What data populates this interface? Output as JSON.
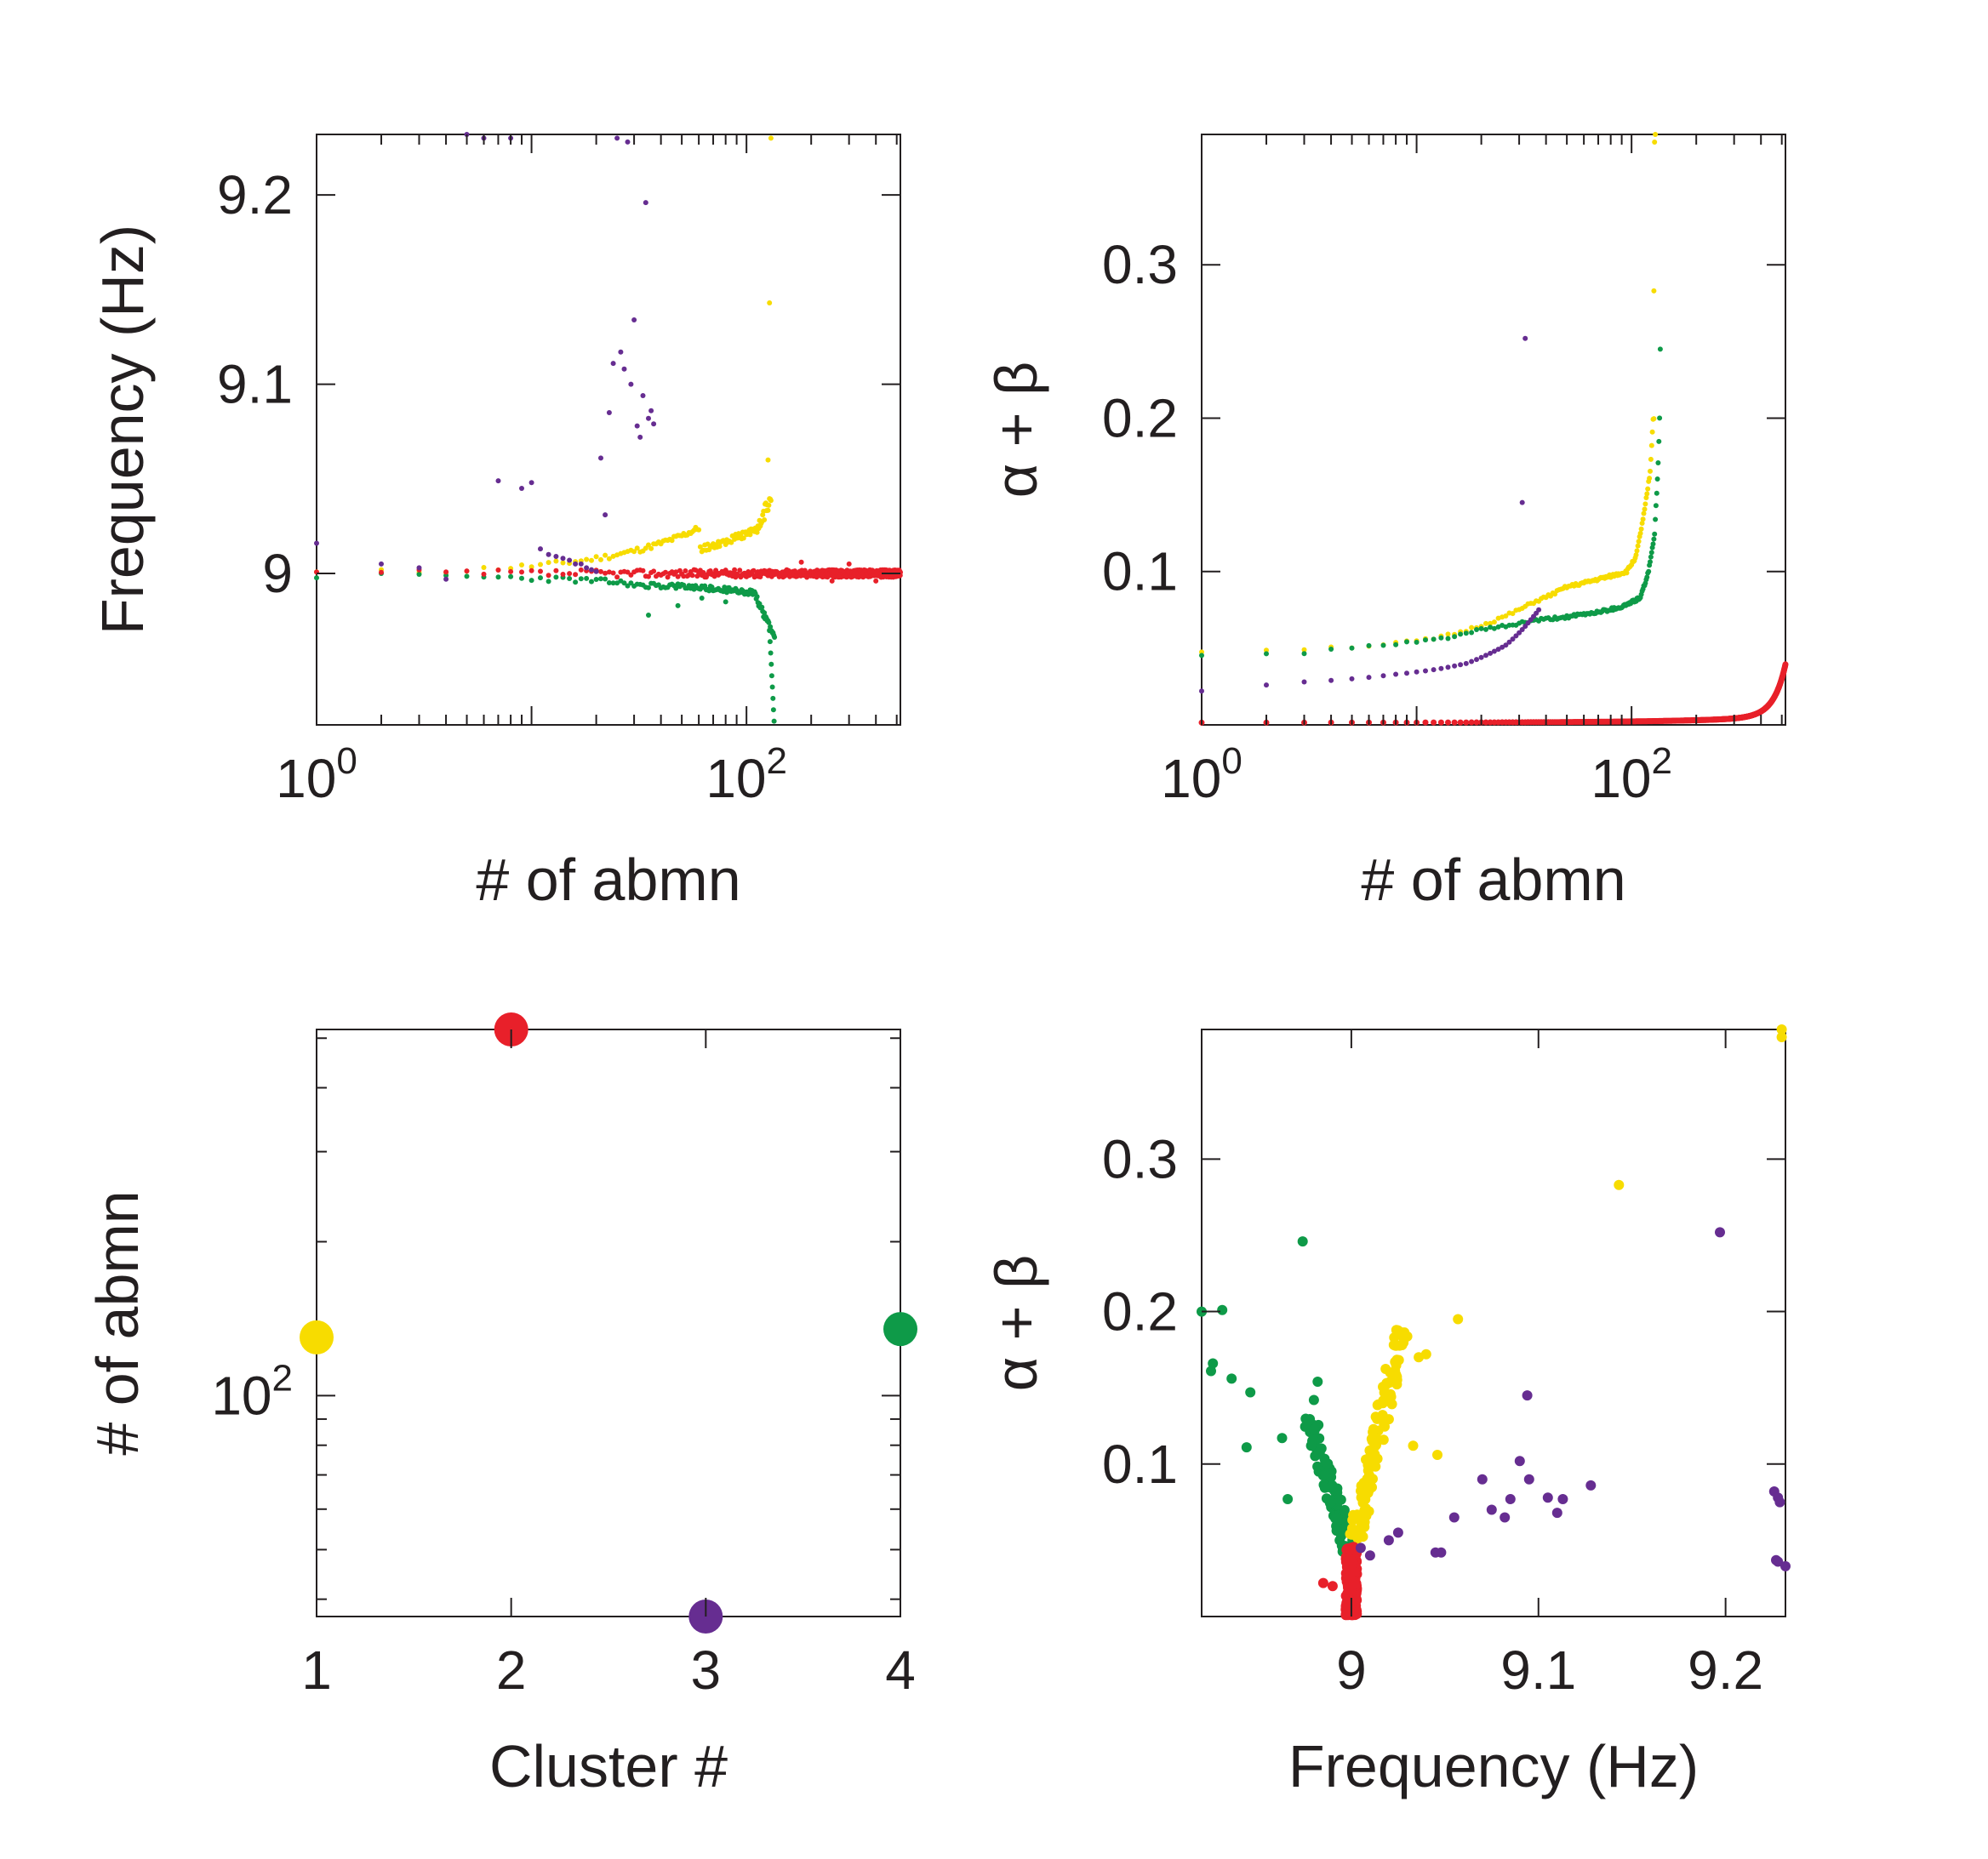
{
  "colors": {
    "yellow": "#f7dc00",
    "red": "#e8202a",
    "purple": "#662d91",
    "green": "#0e9a48",
    "axis": "#231f20"
  },
  "chart_data": [
    {
      "panel": "top-left",
      "type": "scatter",
      "xlabel": "# of abmn",
      "ylabel": "Frequency (Hz)",
      "xscale": "log",
      "xlim": [
        1,
        520
      ],
      "ylim": [
        8.92,
        9.232
      ],
      "xticks": [
        {
          "value": 1,
          "base": "10",
          "exp": "0"
        },
        {
          "value": 100,
          "base": "10",
          "exp": "2"
        }
      ],
      "yticks": [
        {
          "value": 9.0,
          "label": "9"
        },
        {
          "value": 9.1,
          "label": "9.1"
        },
        {
          "value": 9.2,
          "label": "9.2"
        }
      ],
      "series": [
        {
          "color": "yellow",
          "profile": "freq_yellow",
          "count": 130
        },
        {
          "color": "green",
          "profile": "freq_green",
          "count": 135
        },
        {
          "color": "red",
          "profile": "freq_red",
          "count": 520
        },
        {
          "color": "purple",
          "points": [
            [
              1,
              9.016
            ],
            [
              2,
              9.005
            ],
            [
              3,
              9.003
            ],
            [
              4,
              8.997
            ],
            [
              5,
              9.232
            ],
            [
              6,
              9.23
            ],
            [
              7,
              9.049
            ],
            [
              8,
              9.23
            ],
            [
              9,
              9.045
            ],
            [
              10,
              9.048
            ],
            [
              11,
              9.013
            ],
            [
              12,
              9.01
            ],
            [
              13,
              9.009
            ],
            [
              14,
              9.008
            ],
            [
              15,
              9.007
            ],
            [
              16,
              9.005
            ],
            [
              17,
              9.005
            ],
            [
              18,
              9.003
            ],
            [
              19,
              9.002
            ],
            [
              20,
              9.001
            ],
            [
              21,
              9.061
            ],
            [
              22,
              9.031
            ],
            [
              23,
              9.085
            ],
            [
              24,
              9.111
            ],
            [
              25,
              9.23
            ],
            [
              26,
              9.117
            ],
            [
              27,
              9.108
            ],
            [
              28,
              9.228
            ],
            [
              29,
              9.1
            ],
            [
              30,
              9.134
            ],
            [
              31,
              9.078
            ],
            [
              32,
              9.072
            ],
            [
              33,
              9.094
            ],
            [
              34,
              9.196
            ],
            [
              35,
              9.082
            ],
            [
              36,
              9.086
            ],
            [
              37,
              9.079
            ]
          ]
        }
      ]
    },
    {
      "panel": "top-right",
      "type": "scatter",
      "xlabel": "# of abmn",
      "ylabel": "α + β",
      "xscale": "log",
      "xlim": [
        1,
        520
      ],
      "ylim": [
        0,
        0.385
      ],
      "xticks": [
        {
          "value": 1,
          "base": "10",
          "exp": "0"
        },
        {
          "value": 100,
          "base": "10",
          "exp": "2"
        }
      ],
      "yticks": [
        {
          "value": 0.1,
          "label": "0.1"
        },
        {
          "value": 0.2,
          "label": "0.2"
        },
        {
          "value": 0.3,
          "label": "0.3"
        }
      ],
      "series": [
        {
          "color": "red",
          "profile": "ab_red",
          "count": 520
        },
        {
          "color": "yellow",
          "profile": "ab_yellow",
          "count": 130
        },
        {
          "color": "green",
          "profile": "ab_green",
          "count": 135
        },
        {
          "color": "purple",
          "profile": "ab_purple",
          "count": 37
        }
      ]
    },
    {
      "panel": "bottom-left",
      "type": "scatter",
      "xlabel": "Cluster #",
      "ylabel": "# of abmn",
      "yscale": "log",
      "xlim": [
        1,
        4
      ],
      "ylim": [
        37,
        520
      ],
      "xticks": [
        {
          "value": 1,
          "label": "1"
        },
        {
          "value": 2,
          "label": "2"
        },
        {
          "value": 3,
          "label": "3"
        },
        {
          "value": 4,
          "label": "4"
        }
      ],
      "yticks": [
        {
          "value": 100,
          "base": "10",
          "exp": "2"
        }
      ],
      "points": [
        {
          "x": 1,
          "y": 130,
          "color": "yellow"
        },
        {
          "x": 2,
          "y": 520,
          "color": "red"
        },
        {
          "x": 3,
          "y": 37,
          "color": "purple"
        },
        {
          "x": 4,
          "y": 135,
          "color": "green"
        }
      ]
    },
    {
      "panel": "bottom-right",
      "type": "scatter",
      "xlabel": "Frequency (Hz)",
      "ylabel": "α + β",
      "xlim": [
        8.92,
        9.232
      ],
      "ylim": [
        0,
        0.385
      ],
      "xticks": [
        {
          "value": 9.0,
          "label": "9"
        },
        {
          "value": 9.1,
          "label": "9.1"
        },
        {
          "value": 9.2,
          "label": "9.2"
        }
      ],
      "yticks": [
        {
          "value": 0.1,
          "label": "0.1"
        },
        {
          "value": 0.2,
          "label": "0.2"
        },
        {
          "value": 0.3,
          "label": "0.3"
        }
      ],
      "series": [
        {
          "color": "green",
          "profile": "fab_green",
          "extra": [
            [
              8.92,
              0.2
            ],
            [
              8.931,
              0.201
            ],
            [
              8.926,
              0.166
            ],
            [
              8.925,
              0.161
            ],
            [
              8.936,
              0.156
            ],
            [
              8.946,
              0.147
            ],
            [
              8.944,
              0.111
            ],
            [
              8.963,
              0.117
            ],
            [
              8.974,
              0.246
            ],
            [
              8.966,
              0.077
            ],
            [
              8.982,
              0.154
            ],
            [
              8.98,
              0.142
            ]
          ]
        },
        {
          "color": "yellow",
          "profile": "fab_yellow",
          "extra": [
            [
              9.057,
              0.195
            ],
            [
              9.143,
              0.283
            ],
            [
              9.23,
              0.385
            ],
            [
              9.23,
              0.38
            ],
            [
              9.033,
              0.112
            ],
            [
              9.046,
              0.106
            ],
            [
              9.036,
              0.17
            ],
            [
              9.04,
              0.172
            ]
          ]
        },
        {
          "color": "red",
          "profile": "fab_red"
        },
        {
          "color": "purple",
          "points": [
            [
              9.005,
              0.045
            ],
            [
              9.01,
              0.04
            ],
            [
              9.02,
              0.05
            ],
            [
              9.025,
              0.055
            ],
            [
              9.045,
              0.042
            ],
            [
              9.048,
              0.042
            ],
            [
              9.055,
              0.065
            ],
            [
              9.075,
              0.07
            ],
            [
              9.07,
              0.09
            ],
            [
              9.082,
              0.065
            ],
            [
              9.085,
              0.077
            ],
            [
              9.09,
              0.102
            ],
            [
              9.095,
              0.09
            ],
            [
              9.094,
              0.145
            ],
            [
              9.105,
              0.078
            ],
            [
              9.11,
              0.068
            ],
            [
              9.113,
              0.077
            ],
            [
              9.128,
              0.086
            ],
            [
              9.197,
              0.252
            ],
            [
              9.226,
              0.082
            ],
            [
              9.228,
              0.078
            ],
            [
              9.229,
              0.075
            ],
            [
              9.227,
              0.037
            ],
            [
              9.228,
              0.036
            ],
            [
              9.232,
              0.033
            ]
          ]
        }
      ]
    }
  ]
}
